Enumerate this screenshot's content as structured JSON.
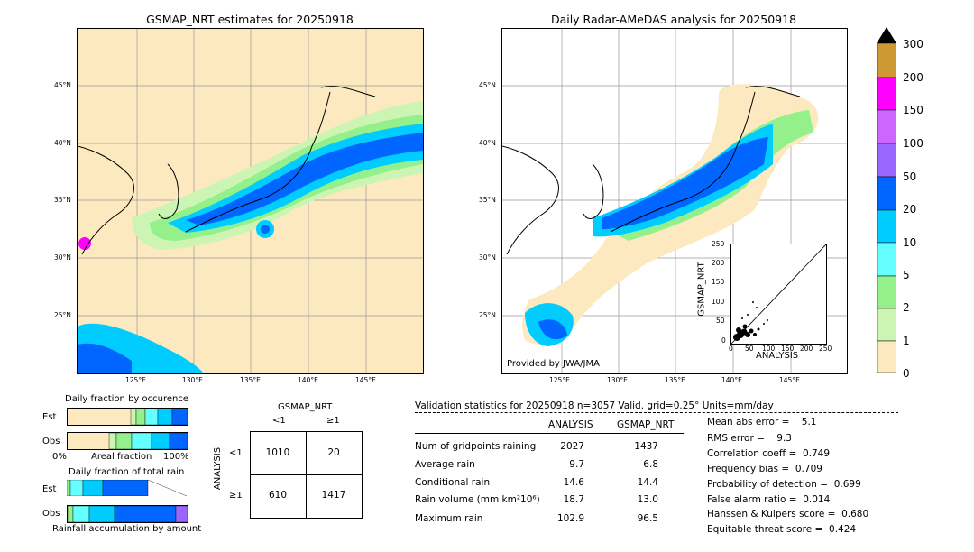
{
  "colors": {
    "land": "#fde9bf",
    "light_green": "#ccf5b3",
    "green": "#93f08a",
    "cyan_light": "#66ffff",
    "cyan": "#00ccff",
    "blue": "#0066ff",
    "purple": "#9966ff",
    "violet": "#cc66ff",
    "magenta": "#ff00ff",
    "orange_brown": "#cc9933"
  },
  "left_map": {
    "title": "GSMAP_NRT estimates for 20250918",
    "lat_labels": [
      "45°N",
      "40°N",
      "35°N",
      "30°N",
      "25°N"
    ],
    "lon_labels": [
      "125°E",
      "130°E",
      "135°E",
      "140°E",
      "145°E"
    ]
  },
  "right_map": {
    "title": "Daily Radar-AMeDAS analysis for 20250918",
    "lat_labels": [
      "45°N",
      "40°N",
      "35°N",
      "30°N",
      "25°N"
    ],
    "lon_labels": [
      "125°E",
      "130°E",
      "135°E",
      "140°E",
      "145°E"
    ],
    "credit": "Provided by JWA/JMA"
  },
  "colorbar": {
    "labels": [
      "300",
      "200",
      "150",
      "100",
      "50",
      "20",
      "10",
      "5",
      "2",
      "1",
      "0"
    ]
  },
  "scatter": {
    "ylabel": "GSMAP_NRT",
    "xlabel": "ANALYSIS",
    "ticks": [
      "0",
      "50",
      "100",
      "150",
      "200",
      "250"
    ]
  },
  "occurrence": {
    "title": "Daily fraction by occurence",
    "row_est": "Est",
    "row_obs": "Obs",
    "axis_left": "0%",
    "axis_mid": "Areal fraction",
    "axis_right": "100%"
  },
  "total_rain": {
    "title": "Daily fraction of total rain",
    "row_est": "Est",
    "row_obs": "Obs",
    "axis_label": "Rainfall accumulation by amount"
  },
  "contingency": {
    "col_header": "GSMAP_NRT",
    "col_lt": "<1",
    "col_ge": "≥1",
    "row_header": "ANALYSIS",
    "row_lt": "<1",
    "row_ge": "≥1",
    "a": "1010",
    "b": "20",
    "c": "610",
    "d": "1417"
  },
  "validation": {
    "header": "Validation statistics for 20250918  n=3057 Valid. grid=0.25° Units=mm/day",
    "col_analysis": "ANALYSIS",
    "col_gsmap": "GSMAP_NRT",
    "rows": [
      {
        "label": "Num of gridpoints raining",
        "analysis": "2027",
        "gsmap": "1437"
      },
      {
        "label": "Average rain",
        "analysis": "9.7",
        "gsmap": "6.8"
      },
      {
        "label": "Conditional rain",
        "analysis": "14.6",
        "gsmap": "14.4"
      },
      {
        "label": "Rain volume (mm km²10⁶)",
        "analysis": "18.7",
        "gsmap": "13.0"
      },
      {
        "label": "Maximum rain",
        "analysis": "102.9",
        "gsmap": "96.5"
      }
    ],
    "scores": [
      "Mean abs error =    5.1",
      "RMS error =    9.3",
      "Correlation coeff =  0.749",
      "Frequency bias =  0.709",
      "Probability of detection =  0.699",
      "False alarm ratio =  0.014",
      "Hanssen & Kuipers score =  0.680",
      "Equitable threat score =  0.424"
    ]
  },
  "chart_data": [
    {
      "type": "heatmap",
      "title": "GSMAP_NRT estimates for 20250918",
      "x_ticks": [
        "125°E",
        "130°E",
        "135°E",
        "140°E",
        "145°E"
      ],
      "y_ticks": [
        "45°N",
        "40°N",
        "35°N",
        "30°N",
        "25°N"
      ]
    },
    {
      "type": "heatmap",
      "title": "Daily Radar-AMeDAS analysis for 20250918",
      "x_ticks": [
        "125°E",
        "130°E",
        "135°E",
        "140°E",
        "145°E"
      ],
      "y_ticks": [
        "45°N",
        "40°N",
        "35°N",
        "30°N",
        "25°N"
      ],
      "colorbar_levels": [
        0,
        1,
        2,
        5,
        10,
        20,
        50,
        100,
        150,
        200,
        300
      ]
    },
    {
      "type": "scatter",
      "xlabel": "ANALYSIS",
      "ylabel": "GSMAP_NRT",
      "xlim": [
        0,
        250
      ],
      "ylim": [
        0,
        250
      ]
    },
    {
      "type": "table",
      "title": "GSMAP_NRT",
      "columns": [
        "<1",
        "≥1"
      ],
      "rows": [
        "<1",
        "≥1"
      ],
      "values": [
        [
          1010,
          20
        ],
        [
          610,
          1417
        ]
      ]
    }
  ]
}
